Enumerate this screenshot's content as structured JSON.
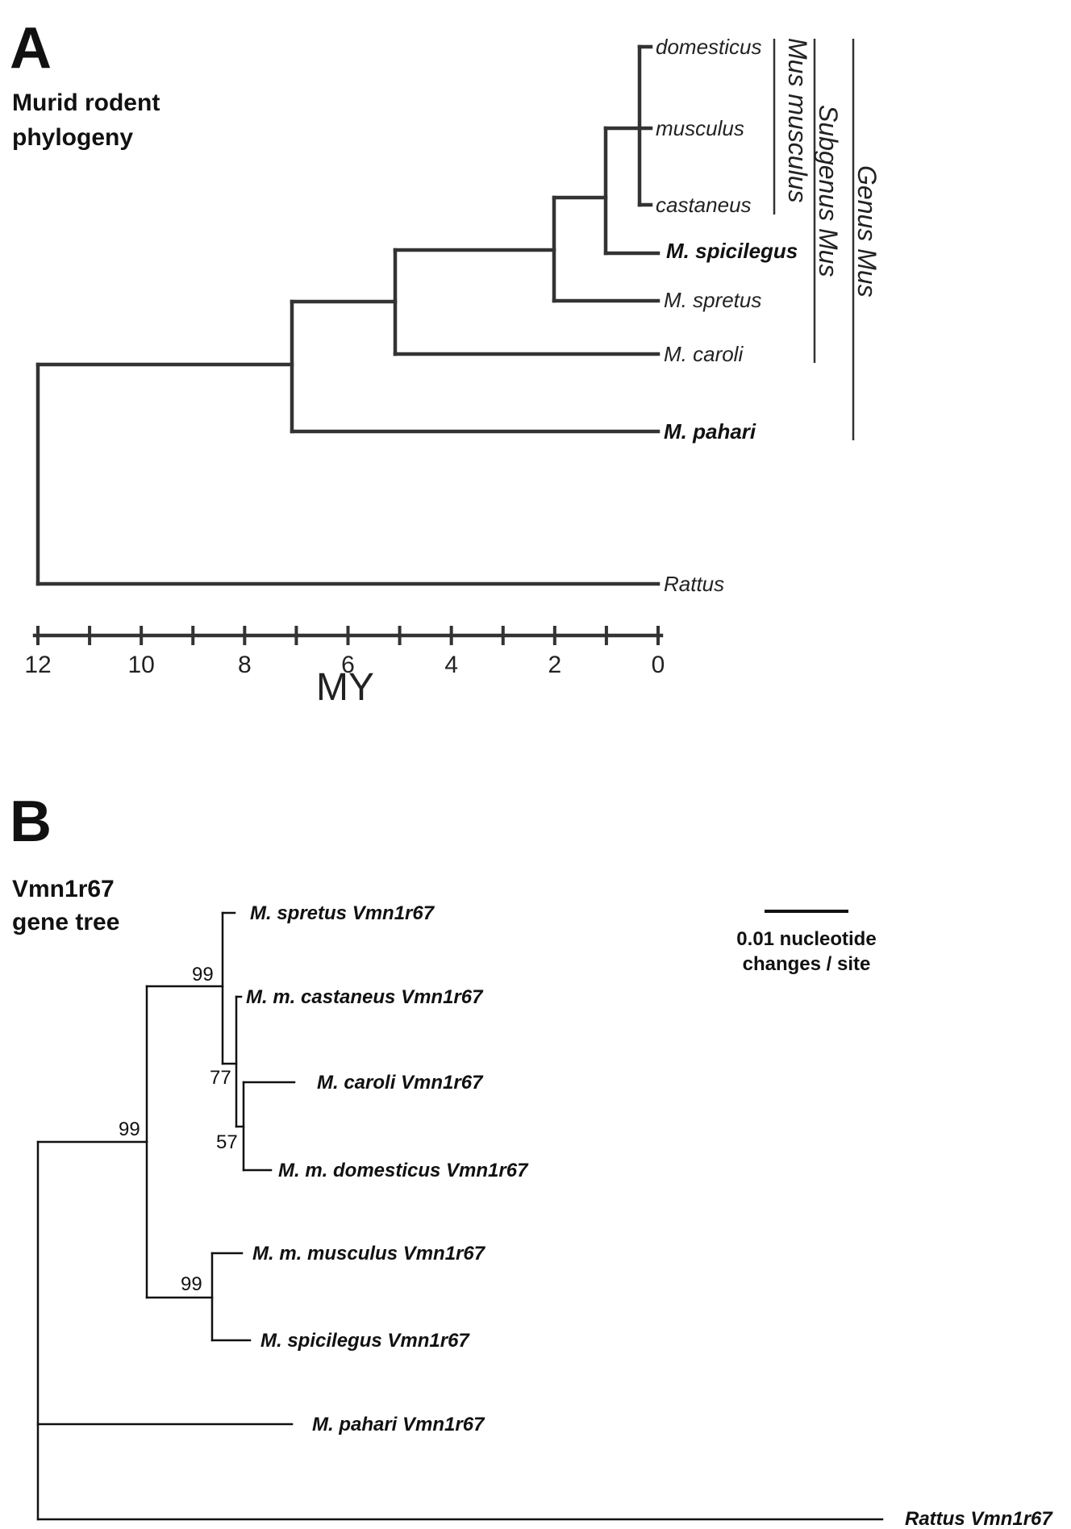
{
  "panel_a": {
    "letter": "A",
    "title_line1": "Murid rodent",
    "title_line2": "phylogeny",
    "taxa": {
      "domesticus": "domesticus",
      "musculus": "musculus",
      "castaneus": "castaneus",
      "spicilegus": "M. spicilegus",
      "spretus": "M. spretus",
      "caroli": "M. caroli",
      "pahari": "M. pahari",
      "rattus": "Rattus"
    },
    "groups": {
      "mus_musculus": "Mus musculus",
      "subgenus_mus": "Subgenus Mus",
      "genus_mus": "Genus Mus"
    },
    "axis": {
      "title": "MY",
      "ticks": [
        "12",
        "10",
        "8",
        "6",
        "4",
        "2",
        "0"
      ]
    }
  },
  "panel_b": {
    "letter": "B",
    "title_line1": "Vmn1r67",
    "title_line2": "gene tree",
    "taxa": {
      "spretus": "M. spretus Vmn1r67",
      "castaneus": "M. m. castaneus Vmn1r67",
      "caroli": "M. caroli Vmn1r67",
      "domesticus": "M. m. domesticus Vmn1r67",
      "musculus": "M. m. musculus Vmn1r67",
      "spicilegus": "M. spicilegus Vmn1r67",
      "pahari": "M. pahari Vmn1r67",
      "rattus": "Rattus Vmn1r67"
    },
    "support": {
      "n1": "99",
      "n2": "77",
      "n3": "57",
      "n4": "99",
      "n5": "99"
    },
    "scale": {
      "line1": "0.01 nucleotide",
      "line2": "changes / site"
    }
  }
}
